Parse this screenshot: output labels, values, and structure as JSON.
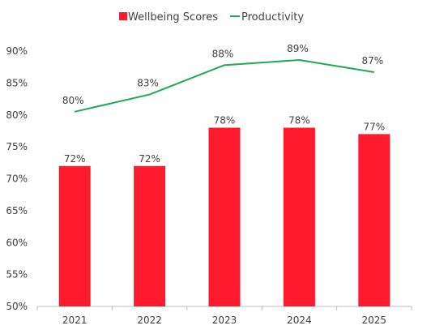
{
  "chart_data": {
    "type": "bar",
    "title": "",
    "xlabel": "",
    "ylabel": "",
    "categories": [
      "2021",
      "2022",
      "2023",
      "2024",
      "2025"
    ],
    "ylim": [
      50,
      90
    ],
    "yticks": [
      50,
      55,
      60,
      65,
      70,
      75,
      80,
      85,
      90
    ],
    "y_unit": "%",
    "grid": false,
    "legend_position": "top-center",
    "series": [
      {
        "name": "Wellbeing Scores",
        "type": "bar",
        "color": "#FF1A2E",
        "values": [
          72,
          72,
          78,
          78,
          77
        ],
        "labels": [
          "72%",
          "72%",
          "78%",
          "78%",
          "77%"
        ]
      },
      {
        "name": "Productivity",
        "type": "line",
        "color": "#1FA85A",
        "values": [
          80.5,
          83.2,
          87.8,
          88.6,
          86.7
        ],
        "labels": [
          "80%",
          "83%",
          "88%",
          "89%",
          "87%"
        ]
      }
    ]
  }
}
